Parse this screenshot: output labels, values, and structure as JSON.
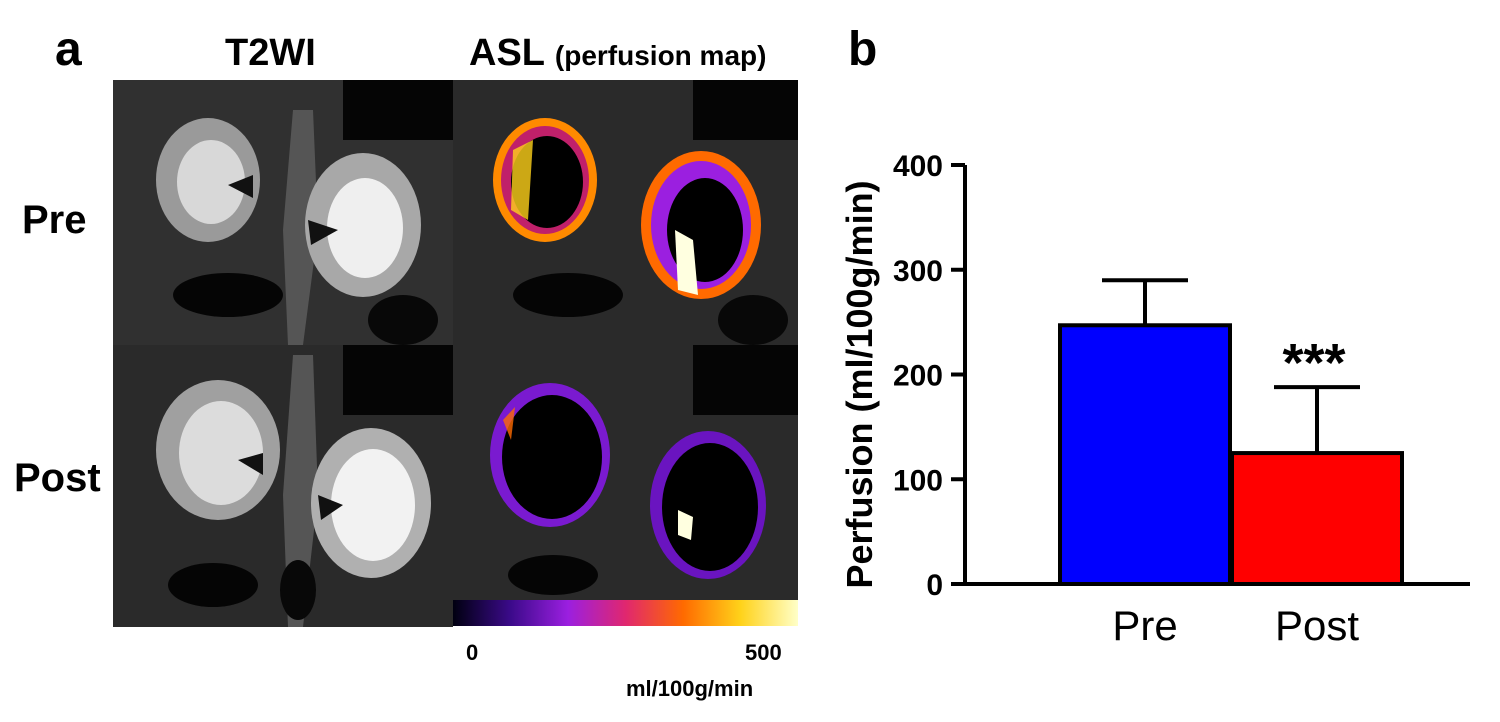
{
  "panel_a": {
    "letter": "a",
    "col_t2wi": "T2WI",
    "col_asl": "ASL",
    "col_asl_sub": "(perfusion map)",
    "row_pre": "Pre",
    "row_post": "Post",
    "colorbar": {
      "min_label": "0",
      "max_label": "500",
      "unit": "ml/100g/min",
      "colors": [
        "#000010",
        "#3b0a8a",
        "#9b1fe0",
        "#e0276f",
        "#ff6a00",
        "#ffd21a",
        "#ffffc8"
      ]
    }
  },
  "panel_b": {
    "letter": "b"
  },
  "chart_data": {
    "type": "bar",
    "categories": [
      "Pre",
      "Post"
    ],
    "values": [
      247,
      125
    ],
    "errors": [
      43,
      63
    ],
    "colors": [
      "#0000ff",
      "#ff0000"
    ],
    "ylabel": "Perfusion (ml/100g/min)",
    "xlabel": "",
    "ylim": [
      0,
      400
    ],
    "yticks": [
      0,
      100,
      200,
      300,
      400
    ],
    "ytick_labels": [
      "0",
      "100",
      "200",
      "300",
      "400"
    ],
    "annotation": "***",
    "annotation_category": "Post",
    "grid": false
  }
}
